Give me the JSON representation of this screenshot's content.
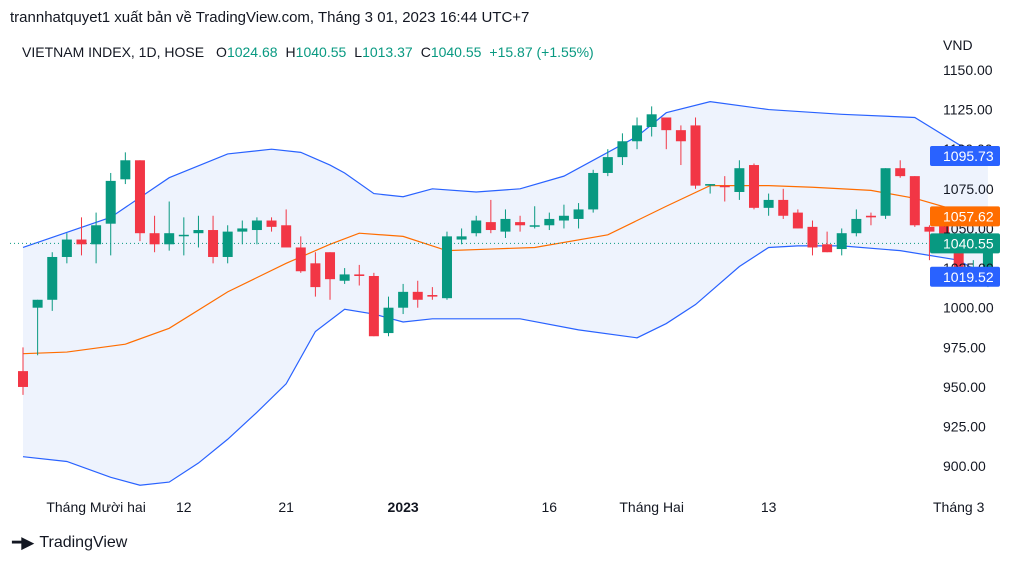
{
  "header": {
    "publisher": "trannhatquyet1 xuất bản về TradingView.com, Tháng 3 01, 2023 16:44 UTC+7"
  },
  "legend": {
    "symbol": "VIETNAM INDEX, 1D, HOSE",
    "open_key": "O",
    "open": "1024.68",
    "high_key": "H",
    "high": "1040.55",
    "low_key": "L",
    "low": "1013.37",
    "close_key": "C",
    "close": "1040.55",
    "change": "+15.87 (+1.55%)"
  },
  "footer": {
    "brand": "TradingView"
  },
  "colors": {
    "up": "#089981",
    "down": "#f23645",
    "band": "#2962ff",
    "basis": "#ff6d00",
    "band_fill": "#eef3fd",
    "label_blue": "#2962ff",
    "label_orange": "#ff6d00",
    "label_green": "#089981"
  },
  "chart_data": {
    "type": "candlestick",
    "currency": "VND",
    "ylim": [
      885,
      1155
    ],
    "yticks": [
      "900.00",
      "925.00",
      "950.00",
      "975.00",
      "1000.00",
      "1025.00",
      "1050.00",
      "1075.00",
      "1100.00",
      "1125.00",
      "1150.00"
    ],
    "xticks": [
      {
        "label": "Tháng Mười hai",
        "index": 5,
        "bold": false
      },
      {
        "label": "12",
        "index": 11,
        "bold": false
      },
      {
        "label": "21",
        "index": 18,
        "bold": false
      },
      {
        "label": "2023",
        "index": 26,
        "bold": true
      },
      {
        "label": "16",
        "index": 36,
        "bold": false
      },
      {
        "label": "Tháng Hai",
        "index": 43,
        "bold": false
      },
      {
        "label": "13",
        "index": 51,
        "bold": false
      },
      {
        "label": "Tháng 3",
        "index": 64,
        "bold": false
      }
    ],
    "ohlc": [
      [
        960,
        975,
        945,
        950
      ],
      [
        1000,
        1005,
        970,
        1005
      ],
      [
        1005,
        1035,
        998,
        1032
      ],
      [
        1032,
        1047,
        1028,
        1043
      ],
      [
        1043,
        1057,
        1033,
        1040
      ],
      [
        1040,
        1060,
        1028,
        1052
      ],
      [
        1053,
        1085,
        1033,
        1080
      ],
      [
        1081,
        1098,
        1078,
        1093
      ],
      [
        1093,
        1093,
        1042,
        1047
      ],
      [
        1047,
        1058,
        1035,
        1040
      ],
      [
        1040,
        1067,
        1036,
        1047
      ],
      [
        1046,
        1057,
        1033,
        1046
      ],
      [
        1047,
        1058,
        1038,
        1049
      ],
      [
        1049,
        1058,
        1028,
        1032
      ],
      [
        1032,
        1052,
        1028,
        1048
      ],
      [
        1048,
        1055,
        1040,
        1050
      ],
      [
        1049,
        1057,
        1040,
        1055
      ],
      [
        1055,
        1057,
        1048,
        1051
      ],
      [
        1052,
        1062,
        1040,
        1038
      ],
      [
        1038,
        1045,
        1022,
        1023
      ],
      [
        1028,
        1035,
        1007,
        1013
      ],
      [
        1035,
        1035,
        1005,
        1018
      ],
      [
        1017,
        1025,
        1015,
        1021
      ],
      [
        1021,
        1027,
        1014,
        1020
      ],
      [
        1020,
        1022,
        982,
        982
      ],
      [
        984,
        1007,
        982,
        1000
      ],
      [
        1000,
        1015,
        996,
        1010
      ],
      [
        1010,
        1017,
        1000,
        1005
      ],
      [
        1008,
        1013,
        1005,
        1007
      ],
      [
        1006,
        1048,
        1005,
        1045
      ],
      [
        1043,
        1050,
        1040,
        1045
      ],
      [
        1047,
        1058,
        1045,
        1055
      ],
      [
        1054,
        1068,
        1047,
        1049
      ],
      [
        1048,
        1062,
        1044,
        1056
      ],
      [
        1054,
        1058,
        1048,
        1052
      ],
      [
        1052,
        1064,
        1050,
        1052
      ],
      [
        1052,
        1060,
        1049,
        1056
      ],
      [
        1055,
        1065,
        1050,
        1058
      ],
      [
        1056,
        1066,
        1050,
        1062
      ],
      [
        1062,
        1087,
        1060,
        1085
      ],
      [
        1085,
        1100,
        1083,
        1095
      ],
      [
        1095,
        1110,
        1090,
        1105
      ],
      [
        1105,
        1120,
        1100,
        1115
      ],
      [
        1114,
        1127,
        1108,
        1122
      ],
      [
        1120,
        1118,
        1100,
        1112
      ],
      [
        1112,
        1115,
        1090,
        1105
      ],
      [
        1115,
        1120,
        1075,
        1077
      ],
      [
        1077,
        1078,
        1072,
        1078
      ],
      [
        1077,
        1083,
        1067,
        1076
      ],
      [
        1073,
        1093,
        1068,
        1088
      ],
      [
        1090,
        1091,
        1062,
        1063
      ],
      [
        1063,
        1072,
        1058,
        1068
      ],
      [
        1068,
        1075,
        1056,
        1058
      ],
      [
        1060,
        1062,
        1050,
        1050
      ],
      [
        1051,
        1055,
        1033,
        1038
      ],
      [
        1040,
        1048,
        1035,
        1035
      ],
      [
        1037,
        1050,
        1033,
        1047
      ],
      [
        1047,
        1062,
        1045,
        1056
      ],
      [
        1058,
        1060,
        1052,
        1057
      ],
      [
        1058,
        1088,
        1056,
        1088
      ],
      [
        1088,
        1093,
        1082,
        1083
      ],
      [
        1083,
        1083,
        1051,
        1052
      ],
      [
        1051,
        1052,
        1030,
        1048
      ],
      [
        1052,
        1052,
        1035,
        1040
      ],
      [
        1040,
        1040,
        1020,
        1020
      ],
      [
        1020,
        1030,
        1016,
        1024
      ],
      [
        1025,
        1040,
        1013,
        1040
      ]
    ],
    "bb_upper": [
      [
        0,
        1038
      ],
      [
        6,
        1057
      ],
      [
        10,
        1082
      ],
      [
        14,
        1097
      ],
      [
        17,
        1100
      ],
      [
        19,
        1098
      ],
      [
        21,
        1090
      ],
      [
        22,
        1085
      ],
      [
        24,
        1072
      ],
      [
        26,
        1070
      ],
      [
        28,
        1075
      ],
      [
        31,
        1073
      ],
      [
        34,
        1075
      ],
      [
        37,
        1083
      ],
      [
        42,
        1108
      ],
      [
        44,
        1123
      ],
      [
        47,
        1130
      ],
      [
        51,
        1125
      ],
      [
        56,
        1122
      ],
      [
        61,
        1120
      ],
      [
        64,
        1103
      ],
      [
        66,
        1097
      ]
    ],
    "bb_basis": [
      [
        0,
        971
      ],
      [
        3,
        972
      ],
      [
        7,
        977
      ],
      [
        10,
        987
      ],
      [
        14,
        1010
      ],
      [
        18,
        1028
      ],
      [
        21,
        1040
      ],
      [
        23,
        1047
      ],
      [
        26,
        1045
      ],
      [
        29,
        1036
      ],
      [
        32,
        1037
      ],
      [
        35,
        1038
      ],
      [
        40,
        1046
      ],
      [
        44,
        1064
      ],
      [
        47,
        1077
      ],
      [
        51,
        1077
      ],
      [
        54,
        1076
      ],
      [
        58,
        1074
      ],
      [
        61,
        1069
      ],
      [
        64,
        1061
      ],
      [
        66,
        1058
      ]
    ],
    "bb_lower": [
      [
        0,
        906
      ],
      [
        3,
        903
      ],
      [
        6,
        893
      ],
      [
        8,
        888
      ],
      [
        10,
        890
      ],
      [
        12,
        902
      ],
      [
        14,
        917
      ],
      [
        16,
        934
      ],
      [
        18,
        952
      ],
      [
        20,
        985
      ],
      [
        22,
        999
      ],
      [
        24,
        996
      ],
      [
        26,
        991
      ],
      [
        28,
        993
      ],
      [
        31,
        993
      ],
      [
        34,
        993
      ],
      [
        38,
        986
      ],
      [
        42,
        981
      ],
      [
        44,
        990
      ],
      [
        46,
        1002
      ],
      [
        49,
        1026
      ],
      [
        51,
        1038
      ],
      [
        53,
        1039
      ],
      [
        56,
        1039
      ],
      [
        60,
        1036
      ],
      [
        64,
        1030
      ],
      [
        66,
        1019
      ]
    ],
    "price_labels": [
      {
        "value": 1095.73,
        "text": "1095.73",
        "color": "label_blue"
      },
      {
        "value": 1057.62,
        "text": "1057.62",
        "color": "label_orange"
      },
      {
        "value": 1040.55,
        "text": "1040.55",
        "color": "label_green"
      },
      {
        "value": 1019.52,
        "text": "1019.52",
        "color": "label_blue"
      }
    ],
    "last_close": 1040.55
  }
}
